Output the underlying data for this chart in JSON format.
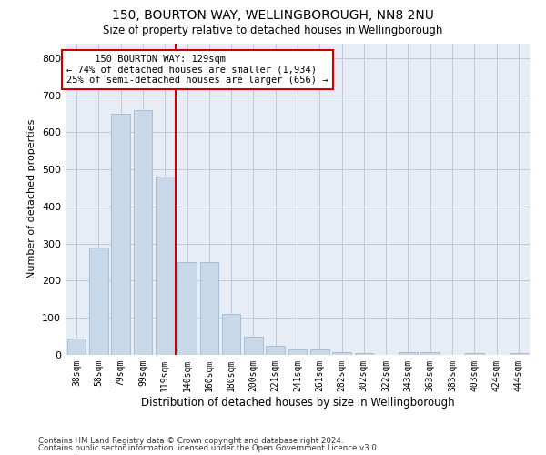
{
  "title1": "150, BOURTON WAY, WELLINGBOROUGH, NN8 2NU",
  "title2": "Size of property relative to detached houses in Wellingborough",
  "xlabel": "Distribution of detached houses by size in Wellingborough",
  "ylabel": "Number of detached properties",
  "categories": [
    "38sqm",
    "58sqm",
    "79sqm",
    "99sqm",
    "119sqm",
    "140sqm",
    "160sqm",
    "180sqm",
    "200sqm",
    "221sqm",
    "241sqm",
    "261sqm",
    "282sqm",
    "302sqm",
    "322sqm",
    "343sqm",
    "363sqm",
    "383sqm",
    "403sqm",
    "424sqm",
    "444sqm"
  ],
  "values": [
    45,
    290,
    650,
    660,
    480,
    250,
    250,
    110,
    50,
    25,
    15,
    15,
    8,
    5,
    0,
    8,
    8,
    0,
    5,
    0,
    5
  ],
  "bar_color": "#c8d8e8",
  "bar_edge_color": "#a0b8cc",
  "grid_color": "#c0c8d8",
  "background_color": "#e8edf5",
  "vline_x": 4.5,
  "vline_color": "#cc0000",
  "annotation_line1": "     150 BOURTON WAY: 129sqm",
  "annotation_line2": "← 74% of detached houses are smaller (1,934)",
  "annotation_line3": "25% of semi-detached houses are larger (656) →",
  "annotation_box_color": "#ffffff",
  "annotation_box_edge": "#cc0000",
  "ylim": [
    0,
    840
  ],
  "yticks": [
    0,
    100,
    200,
    300,
    400,
    500,
    600,
    700,
    800
  ],
  "footer1": "Contains HM Land Registry data © Crown copyright and database right 2024.",
  "footer2": "Contains public sector information licensed under the Open Government Licence v3.0."
}
